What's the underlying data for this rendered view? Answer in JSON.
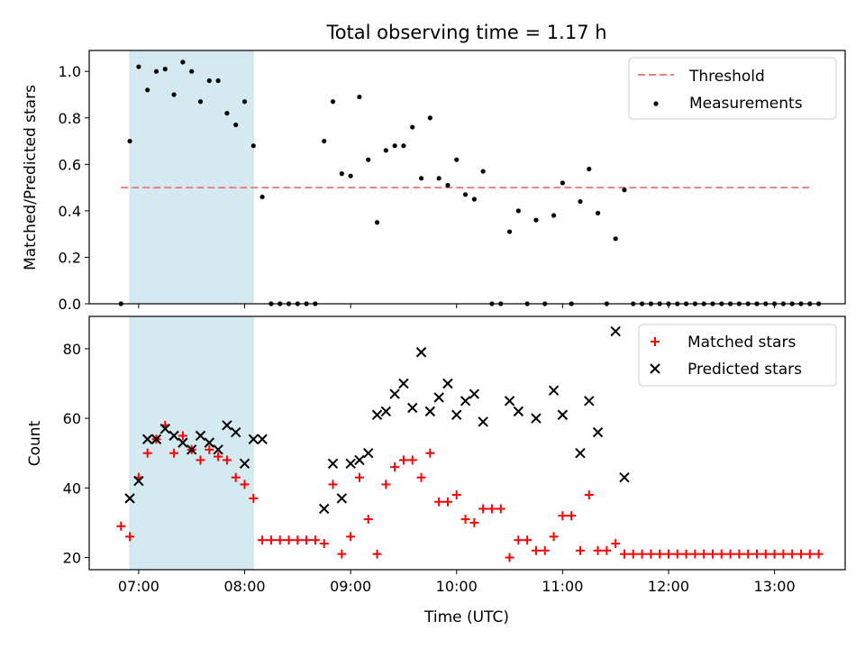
{
  "chart_data": [
    {
      "type": "scatter",
      "title": "Total observing time = 1.17 h",
      "xlabel": "",
      "ylabel": "Matched/Predicted stars",
      "xlim": [
        "06:32",
        "13:40"
      ],
      "ylim": [
        0,
        1.09
      ],
      "xticks": [
        "07:00",
        "08:00",
        "09:00",
        "10:00",
        "11:00",
        "12:00",
        "13:00"
      ],
      "yticks": [
        "0.0",
        "0.2",
        "0.4",
        "0.6",
        "0.8",
        "1.0"
      ],
      "highlight_span": {
        "start": "06:55",
        "end": "08:05",
        "color": "#d5eaf0"
      },
      "threshold": {
        "name": "Threshold",
        "value": 0.5,
        "x_start": "06:50",
        "x_end": "13:20",
        "color": "#f08080"
      },
      "legend": {
        "position": "top-right",
        "entries": [
          "Threshold",
          "Measurements"
        ]
      },
      "series": [
        {
          "name": "Measurements",
          "color": "#000000",
          "marker": "dot",
          "points": [
            [
              "06:50",
              0
            ],
            [
              "06:55",
              0.7
            ],
            [
              "07:00",
              1.02
            ],
            [
              "07:05",
              0.92
            ],
            [
              "07:10",
              1.0
            ],
            [
              "07:15",
              1.01
            ],
            [
              "07:20",
              0.9
            ],
            [
              "07:25",
              1.04
            ],
            [
              "07:30",
              1.0
            ],
            [
              "07:35",
              0.87
            ],
            [
              "07:40",
              0.96
            ],
            [
              "07:45",
              0.96
            ],
            [
              "07:50",
              0.82
            ],
            [
              "07:55",
              0.77
            ],
            [
              "08:00",
              0.87
            ],
            [
              "08:05",
              0.68
            ],
            [
              "08:10",
              0.46
            ],
            [
              "08:15",
              0
            ],
            [
              "08:20",
              0
            ],
            [
              "08:25",
              0
            ],
            [
              "08:30",
              0
            ],
            [
              "08:35",
              0
            ],
            [
              "08:40",
              0
            ],
            [
              "08:45",
              0.7
            ],
            [
              "08:50",
              0.87
            ],
            [
              "08:55",
              0.56
            ],
            [
              "09:00",
              0.55
            ],
            [
              "09:05",
              0.89
            ],
            [
              "09:10",
              0.62
            ],
            [
              "09:15",
              0.35
            ],
            [
              "09:20",
              0.66
            ],
            [
              "09:25",
              0.68
            ],
            [
              "09:30",
              0.68
            ],
            [
              "09:35",
              0.76
            ],
            [
              "09:40",
              0.54
            ],
            [
              "09:45",
              0.8
            ],
            [
              "09:50",
              0.54
            ],
            [
              "09:55",
              0.51
            ],
            [
              "10:00",
              0.62
            ],
            [
              "10:05",
              0.47
            ],
            [
              "10:10",
              0.45
            ],
            [
              "10:15",
              0.57
            ],
            [
              "10:20",
              0
            ],
            [
              "10:25",
              0
            ],
            [
              "10:30",
              0.31
            ],
            [
              "10:35",
              0.4
            ],
            [
              "10:40",
              0
            ],
            [
              "10:45",
              0.36
            ],
            [
              "10:50",
              0
            ],
            [
              "10:55",
              0.38
            ],
            [
              "11:00",
              0.52
            ],
            [
              "11:05",
              0
            ],
            [
              "11:10",
              0.44
            ],
            [
              "11:15",
              0.58
            ],
            [
              "11:20",
              0.39
            ],
            [
              "11:25",
              0
            ],
            [
              "11:30",
              0.28
            ],
            [
              "11:35",
              0.49
            ],
            [
              "11:40",
              0
            ],
            [
              "11:45",
              0
            ],
            [
              "11:50",
              0
            ],
            [
              "11:55",
              0
            ],
            [
              "12:00",
              0
            ],
            [
              "12:05",
              0
            ],
            [
              "12:10",
              0
            ],
            [
              "12:15",
              0
            ],
            [
              "12:20",
              0
            ],
            [
              "12:25",
              0
            ],
            [
              "12:30",
              0
            ],
            [
              "12:35",
              0
            ],
            [
              "12:40",
              0
            ],
            [
              "12:45",
              0
            ],
            [
              "12:50",
              0
            ],
            [
              "12:55",
              0
            ],
            [
              "13:00",
              0
            ],
            [
              "13:05",
              0
            ],
            [
              "13:10",
              0
            ],
            [
              "13:15",
              0
            ],
            [
              "13:20",
              0
            ],
            [
              "13:25",
              0
            ]
          ]
        }
      ]
    },
    {
      "type": "scatter",
      "title": "",
      "xlabel": "Time (UTC)",
      "ylabel": "Count",
      "xlim": [
        "06:32",
        "13:40"
      ],
      "ylim": [
        16.5,
        89.3
      ],
      "xticks": [
        "07:00",
        "08:00",
        "09:00",
        "10:00",
        "11:00",
        "12:00",
        "13:00"
      ],
      "yticks": [
        "20",
        "40",
        "60",
        "80"
      ],
      "highlight_span": {
        "start": "06:55",
        "end": "08:05",
        "color": "#d5eaf0"
      },
      "legend": {
        "position": "top-right",
        "entries": [
          "Matched stars",
          "Predicted stars"
        ]
      },
      "series": [
        {
          "name": "Matched stars",
          "color": "#ff0000",
          "marker": "plus",
          "points": [
            [
              "06:50",
              29
            ],
            [
              "06:55",
              26
            ],
            [
              "07:00",
              43
            ],
            [
              "07:05",
              50
            ],
            [
              "07:10",
              54
            ],
            [
              "07:15",
              58
            ],
            [
              "07:20",
              50
            ],
            [
              "07:25",
              55
            ],
            [
              "07:30",
              51
            ],
            [
              "07:35",
              48
            ],
            [
              "07:40",
              51
            ],
            [
              "07:45",
              49
            ],
            [
              "07:50",
              48
            ],
            [
              "07:55",
              43
            ],
            [
              "08:00",
              41
            ],
            [
              "08:05",
              37
            ],
            [
              "08:10",
              25
            ],
            [
              "08:15",
              25
            ],
            [
              "08:20",
              25
            ],
            [
              "08:25",
              25
            ],
            [
              "08:30",
              25
            ],
            [
              "08:35",
              25
            ],
            [
              "08:40",
              25
            ],
            [
              "08:45",
              24
            ],
            [
              "08:50",
              41
            ],
            [
              "08:55",
              21
            ],
            [
              "09:00",
              26
            ],
            [
              "09:05",
              43
            ],
            [
              "09:10",
              31
            ],
            [
              "09:15",
              21
            ],
            [
              "09:20",
              41
            ],
            [
              "09:25",
              46
            ],
            [
              "09:30",
              48
            ],
            [
              "09:35",
              48
            ],
            [
              "09:40",
              43
            ],
            [
              "09:45",
              50
            ],
            [
              "09:50",
              36
            ],
            [
              "09:55",
              36
            ],
            [
              "10:00",
              38
            ],
            [
              "10:05",
              31
            ],
            [
              "10:10",
              30
            ],
            [
              "10:15",
              34
            ],
            [
              "10:20",
              34
            ],
            [
              "10:25",
              34
            ],
            [
              "10:30",
              20
            ],
            [
              "10:35",
              25
            ],
            [
              "10:40",
              25
            ],
            [
              "10:45",
              22
            ],
            [
              "10:50",
              22
            ],
            [
              "10:55",
              26
            ],
            [
              "11:00",
              32
            ],
            [
              "11:05",
              32
            ],
            [
              "11:10",
              22
            ],
            [
              "11:15",
              38
            ],
            [
              "11:20",
              22
            ],
            [
              "11:25",
              22
            ],
            [
              "11:30",
              24
            ],
            [
              "11:35",
              21
            ],
            [
              "11:40",
              21
            ],
            [
              "11:45",
              21
            ],
            [
              "11:50",
              21
            ],
            [
              "11:55",
              21
            ],
            [
              "12:00",
              21
            ],
            [
              "12:05",
              21
            ],
            [
              "12:10",
              21
            ],
            [
              "12:15",
              21
            ],
            [
              "12:20",
              21
            ],
            [
              "12:25",
              21
            ],
            [
              "12:30",
              21
            ],
            [
              "12:35",
              21
            ],
            [
              "12:40",
              21
            ],
            [
              "12:45",
              21
            ],
            [
              "12:50",
              21
            ],
            [
              "12:55",
              21
            ],
            [
              "13:00",
              21
            ],
            [
              "13:05",
              21
            ],
            [
              "13:10",
              21
            ],
            [
              "13:15",
              21
            ],
            [
              "13:20",
              21
            ],
            [
              "13:25",
              21
            ]
          ]
        },
        {
          "name": "Predicted stars",
          "color": "#000000",
          "marker": "x",
          "points": [
            [
              "06:55",
              37
            ],
            [
              "07:00",
              42
            ],
            [
              "07:05",
              54
            ],
            [
              "07:10",
              54
            ],
            [
              "07:15",
              57
            ],
            [
              "07:20",
              55
            ],
            [
              "07:25",
              53
            ],
            [
              "07:30",
              51
            ],
            [
              "07:35",
              55
            ],
            [
              "07:40",
              53
            ],
            [
              "07:45",
              51
            ],
            [
              "07:50",
              58
            ],
            [
              "07:55",
              56
            ],
            [
              "08:00",
              47
            ],
            [
              "08:05",
              54
            ],
            [
              "08:10",
              54
            ],
            [
              "08:45",
              34
            ],
            [
              "08:50",
              47
            ],
            [
              "08:55",
              37
            ],
            [
              "09:00",
              47
            ],
            [
              "09:05",
              48
            ],
            [
              "09:10",
              50
            ],
            [
              "09:15",
              61
            ],
            [
              "09:20",
              62
            ],
            [
              "09:25",
              67
            ],
            [
              "09:30",
              70
            ],
            [
              "09:35",
              63
            ],
            [
              "09:40",
              79
            ],
            [
              "09:45",
              62
            ],
            [
              "09:50",
              66
            ],
            [
              "09:55",
              70
            ],
            [
              "10:00",
              61
            ],
            [
              "10:05",
              65
            ],
            [
              "10:10",
              67
            ],
            [
              "10:15",
              59
            ],
            [
              "10:30",
              65
            ],
            [
              "10:35",
              62
            ],
            [
              "10:45",
              60
            ],
            [
              "10:55",
              68
            ],
            [
              "11:00",
              61
            ],
            [
              "11:10",
              50
            ],
            [
              "11:15",
              65
            ],
            [
              "11:20",
              56
            ],
            [
              "11:30",
              85
            ],
            [
              "11:35",
              43
            ]
          ]
        }
      ]
    }
  ]
}
